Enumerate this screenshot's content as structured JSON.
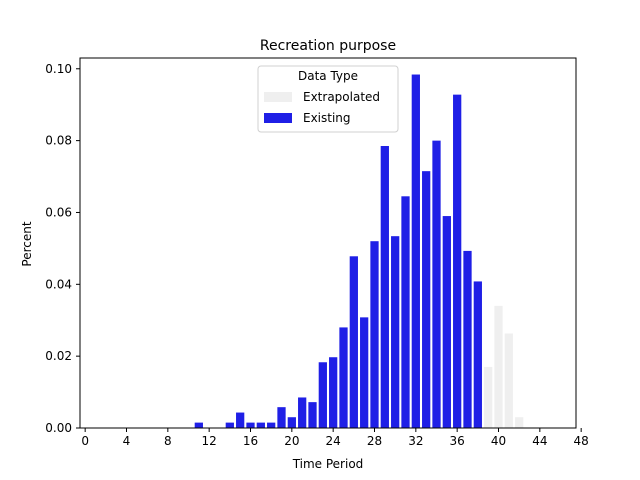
{
  "chart_data": {
    "type": "bar",
    "title": "Recreation purpose",
    "xlabel": "Time Period",
    "ylabel": "Percent",
    "xlim": [
      -0.5,
      47.5
    ],
    "ylim": [
      0,
      0.103
    ],
    "x_ticks": [
      "0",
      "4",
      "8",
      "12",
      "16",
      "20",
      "24",
      "28",
      "32",
      "36",
      "40",
      "44",
      "48"
    ],
    "y_ticks": [
      "0.00",
      "0.02",
      "0.04",
      "0.06",
      "0.08",
      "0.10"
    ],
    "legend": {
      "title": "Data Type",
      "position": "top-center",
      "entries": [
        "Extrapolated",
        "Existing"
      ]
    },
    "series": [
      {
        "name": "Existing",
        "color": "#1f1fe6",
        "points": [
          {
            "x": 11,
            "y": 0.0015
          },
          {
            "x": 14,
            "y": 0.0015
          },
          {
            "x": 15,
            "y": 0.0043
          },
          {
            "x": 16,
            "y": 0.0015
          },
          {
            "x": 17,
            "y": 0.0015
          },
          {
            "x": 18,
            "y": 0.0015
          },
          {
            "x": 19,
            "y": 0.0058
          },
          {
            "x": 20,
            "y": 0.003
          },
          {
            "x": 21,
            "y": 0.0085
          },
          {
            "x": 22,
            "y": 0.0072
          },
          {
            "x": 23,
            "y": 0.0183
          },
          {
            "x": 24,
            "y": 0.0197
          },
          {
            "x": 25,
            "y": 0.028
          },
          {
            "x": 26,
            "y": 0.0478
          },
          {
            "x": 27,
            "y": 0.0308
          },
          {
            "x": 28,
            "y": 0.052
          },
          {
            "x": 29,
            "y": 0.0785
          },
          {
            "x": 30,
            "y": 0.0534
          },
          {
            "x": 31,
            "y": 0.0645
          },
          {
            "x": 32,
            "y": 0.0984
          },
          {
            "x": 33,
            "y": 0.0715
          },
          {
            "x": 34,
            "y": 0.08
          },
          {
            "x": 35,
            "y": 0.059
          },
          {
            "x": 36,
            "y": 0.0928
          },
          {
            "x": 37,
            "y": 0.0493
          },
          {
            "x": 38,
            "y": 0.0408
          }
        ]
      },
      {
        "name": "Extrapolated",
        "color": "#efefef",
        "points": [
          {
            "x": 39,
            "y": 0.017
          },
          {
            "x": 40,
            "y": 0.034
          },
          {
            "x": 41,
            "y": 0.0263
          },
          {
            "x": 42,
            "y": 0.003
          }
        ]
      }
    ]
  }
}
